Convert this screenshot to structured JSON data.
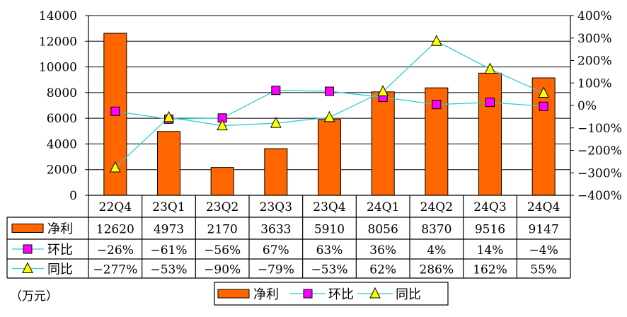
{
  "unit_label": "（万元）",
  "chart_data": {
    "type": "bar",
    "categories": [
      "22Q4",
      "23Q1",
      "23Q2",
      "23Q3",
      "23Q4",
      "24Q1",
      "24Q2",
      "24Q3",
      "24Q4"
    ],
    "series": [
      {
        "name": "净利",
        "type": "bar",
        "axis": "left",
        "color": "#FF6600",
        "values": [
          12620,
          4973,
          2170,
          3633,
          5910,
          8056,
          8370,
          9516,
          9147
        ],
        "labels": [
          "12620",
          "4973",
          "2170",
          "3633",
          "5910",
          "8056",
          "8370",
          "9516",
          "9147"
        ]
      },
      {
        "name": "环比",
        "type": "line",
        "axis": "right",
        "color": "#33CCCC",
        "marker": "square",
        "marker_color": "#FF00FF",
        "values": [
          -26,
          -61,
          -56,
          67,
          63,
          36,
          4,
          14,
          -4
        ],
        "labels": [
          "-26%",
          "-61%",
          "-56%",
          "67%",
          "63%",
          "36%",
          "4%",
          "14%",
          "-4%"
        ]
      },
      {
        "name": "同比",
        "type": "line",
        "axis": "right",
        "color": "#33CCCC",
        "marker": "triangle",
        "marker_color": "#FFFF00",
        "values": [
          -277,
          -53,
          -90,
          -79,
          -53,
          62,
          286,
          162,
          55
        ],
        "labels": [
          "-277%",
          "-53%",
          "-90%",
          "-79%",
          "-53%",
          "62%",
          "286%",
          "162%",
          "55%"
        ]
      }
    ],
    "y_left": {
      "min": 0,
      "max": 14000,
      "step": 2000,
      "ticks": [
        "0",
        "2000",
        "4000",
        "6000",
        "8000",
        "10000",
        "12000",
        "14000"
      ]
    },
    "y_right": {
      "min": -400,
      "max": 400,
      "step": 100,
      "ticks": [
        "-400%",
        "-300%",
        "-200%",
        "-100%",
        "0%",
        "100%",
        "200%",
        "300%",
        "400%"
      ]
    },
    "grid": true,
    "legend_position": "bottom",
    "data_table": true
  }
}
